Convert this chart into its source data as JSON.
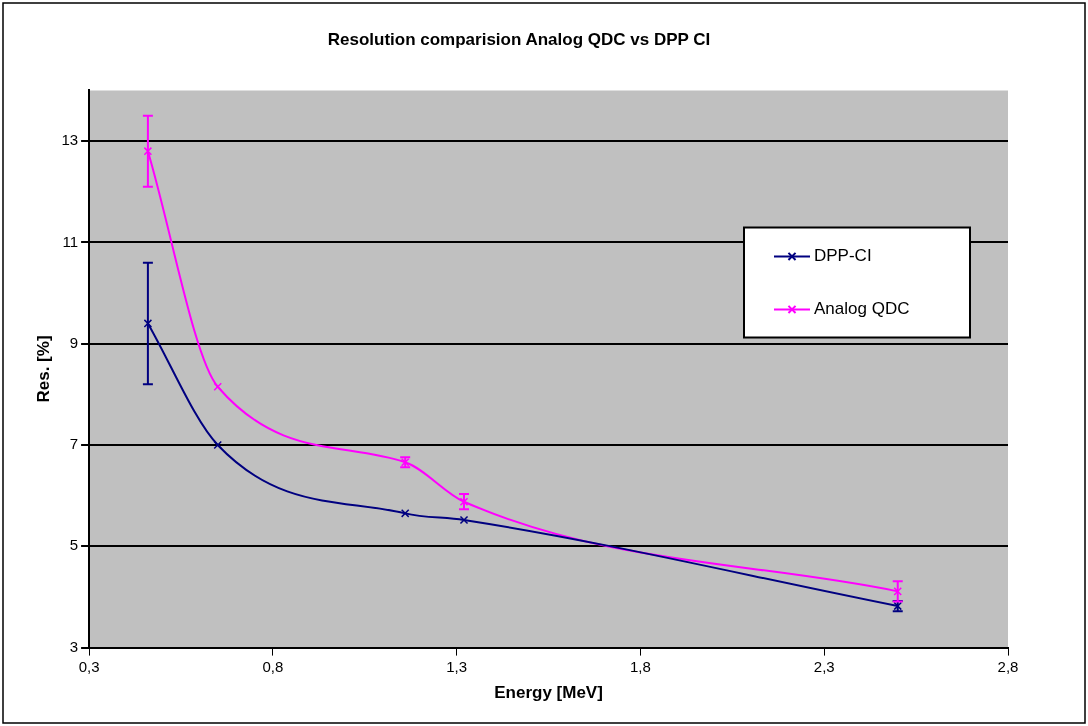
{
  "chart_data": {
    "type": "line",
    "title": "Resolution comparision Analog QDC vs DPP CI",
    "xlabel": "Energy [MeV]",
    "ylabel": "Res. [%]",
    "x": [
      0.46,
      0.65,
      1.16,
      1.32,
      2.5
    ],
    "series": [
      {
        "name": "DPP-CI",
        "color": "#000080",
        "values": [
          9.4,
          7.0,
          5.65,
          5.52,
          3.82
        ],
        "errors": [
          1.2,
          null,
          null,
          null,
          0.1
        ]
      },
      {
        "name": "Analog QDC",
        "color": "#ff00ff",
        "values": [
          12.8,
          8.15,
          6.66,
          5.88,
          4.11
        ],
        "errors": [
          0.7,
          null,
          0.1,
          0.15,
          0.2
        ]
      }
    ],
    "xlim": [
      0.3,
      2.8
    ],
    "xticks": [
      {
        "value": 0.3,
        "label": "0,3"
      },
      {
        "value": 0.8,
        "label": "0,8"
      },
      {
        "value": 1.3,
        "label": "1,3"
      },
      {
        "value": 1.8,
        "label": "1,8"
      },
      {
        "value": 2.3,
        "label": "2,3"
      },
      {
        "value": 2.8,
        "label": "2,8"
      }
    ],
    "ylim": [
      3,
      14
    ],
    "yticks": [
      3,
      5,
      7,
      9,
      11,
      13
    ],
    "grid": "y",
    "legend": "right",
    "marker": "cross"
  }
}
